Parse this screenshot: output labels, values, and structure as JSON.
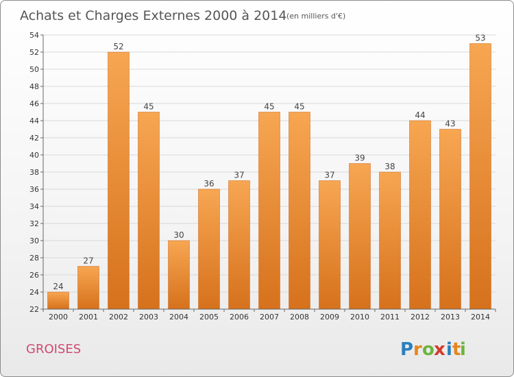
{
  "title": "Achats et Charges Externes 2000 à 2014",
  "unit": "(en milliers d'€)",
  "commune": "GROISES",
  "logo": {
    "letters": [
      "P",
      "r",
      "o",
      "x",
      "i",
      "t",
      "i"
    ],
    "colors": [
      "#2a7fc0",
      "#e6861c",
      "#6cb43f",
      "#d33a2c",
      "#2a7fc0",
      "#e6861c",
      "#6cb43f"
    ]
  },
  "colors": {
    "bar_top": "#f7a652",
    "bar_bottom": "#d6711c",
    "bar_edge": "#c9651a",
    "grid": "#d8d8d8",
    "axis": "#666666"
  },
  "chart_data": {
    "type": "bar",
    "categories": [
      "2000",
      "2001",
      "2002",
      "2003",
      "2004",
      "2005",
      "2006",
      "2007",
      "2008",
      "2009",
      "2010",
      "2011",
      "2012",
      "2013",
      "2014"
    ],
    "values": [
      24,
      27,
      52,
      45,
      30,
      36,
      37,
      45,
      45,
      37,
      39,
      38,
      44,
      43,
      53
    ],
    "title": "Achats et Charges Externes 2000 à 2014",
    "xlabel": "",
    "ylabel": "",
    "ylim": [
      22,
      54
    ],
    "yticks": [
      22,
      24,
      26,
      28,
      30,
      32,
      34,
      36,
      38,
      40,
      42,
      44,
      46,
      48,
      50,
      52,
      54
    ],
    "grid": true,
    "data_labels": true
  }
}
